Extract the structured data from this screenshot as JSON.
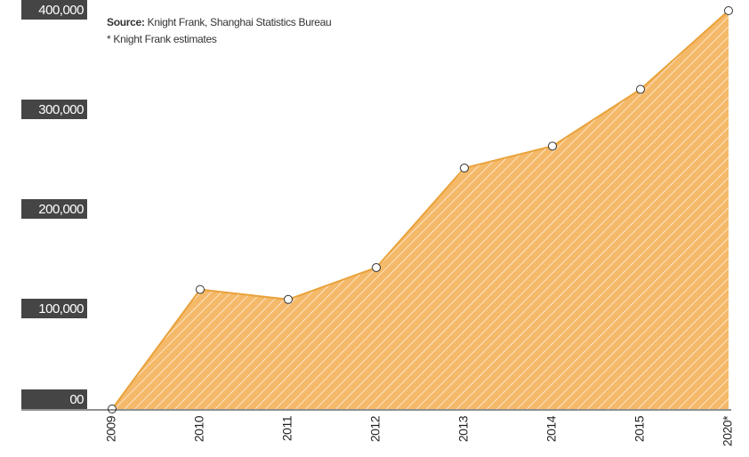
{
  "chart_data": {
    "type": "area",
    "source_label": "Source:",
    "source": "Knight Frank, Shanghai Statistics Bureau",
    "note": "* Knight Frank estimates",
    "categories": [
      "2009",
      "2010",
      "2011",
      "2012",
      "2013",
      "2014",
      "2015",
      "2020*"
    ],
    "values": [
      0,
      120000,
      110000,
      142000,
      242000,
      264000,
      321000,
      400000
    ],
    "color": "#f5b96a",
    "line_color": "#e9a23b",
    "ylim": [
      0,
      400000
    ],
    "yticks": [
      {
        "value": 0,
        "label": "00"
      },
      {
        "value": 100000,
        "label": "100,000"
      },
      {
        "value": 200000,
        "label": "200,000"
      },
      {
        "value": 300000,
        "label": "300,000"
      },
      {
        "value": 400000,
        "label": "400,000"
      }
    ]
  }
}
